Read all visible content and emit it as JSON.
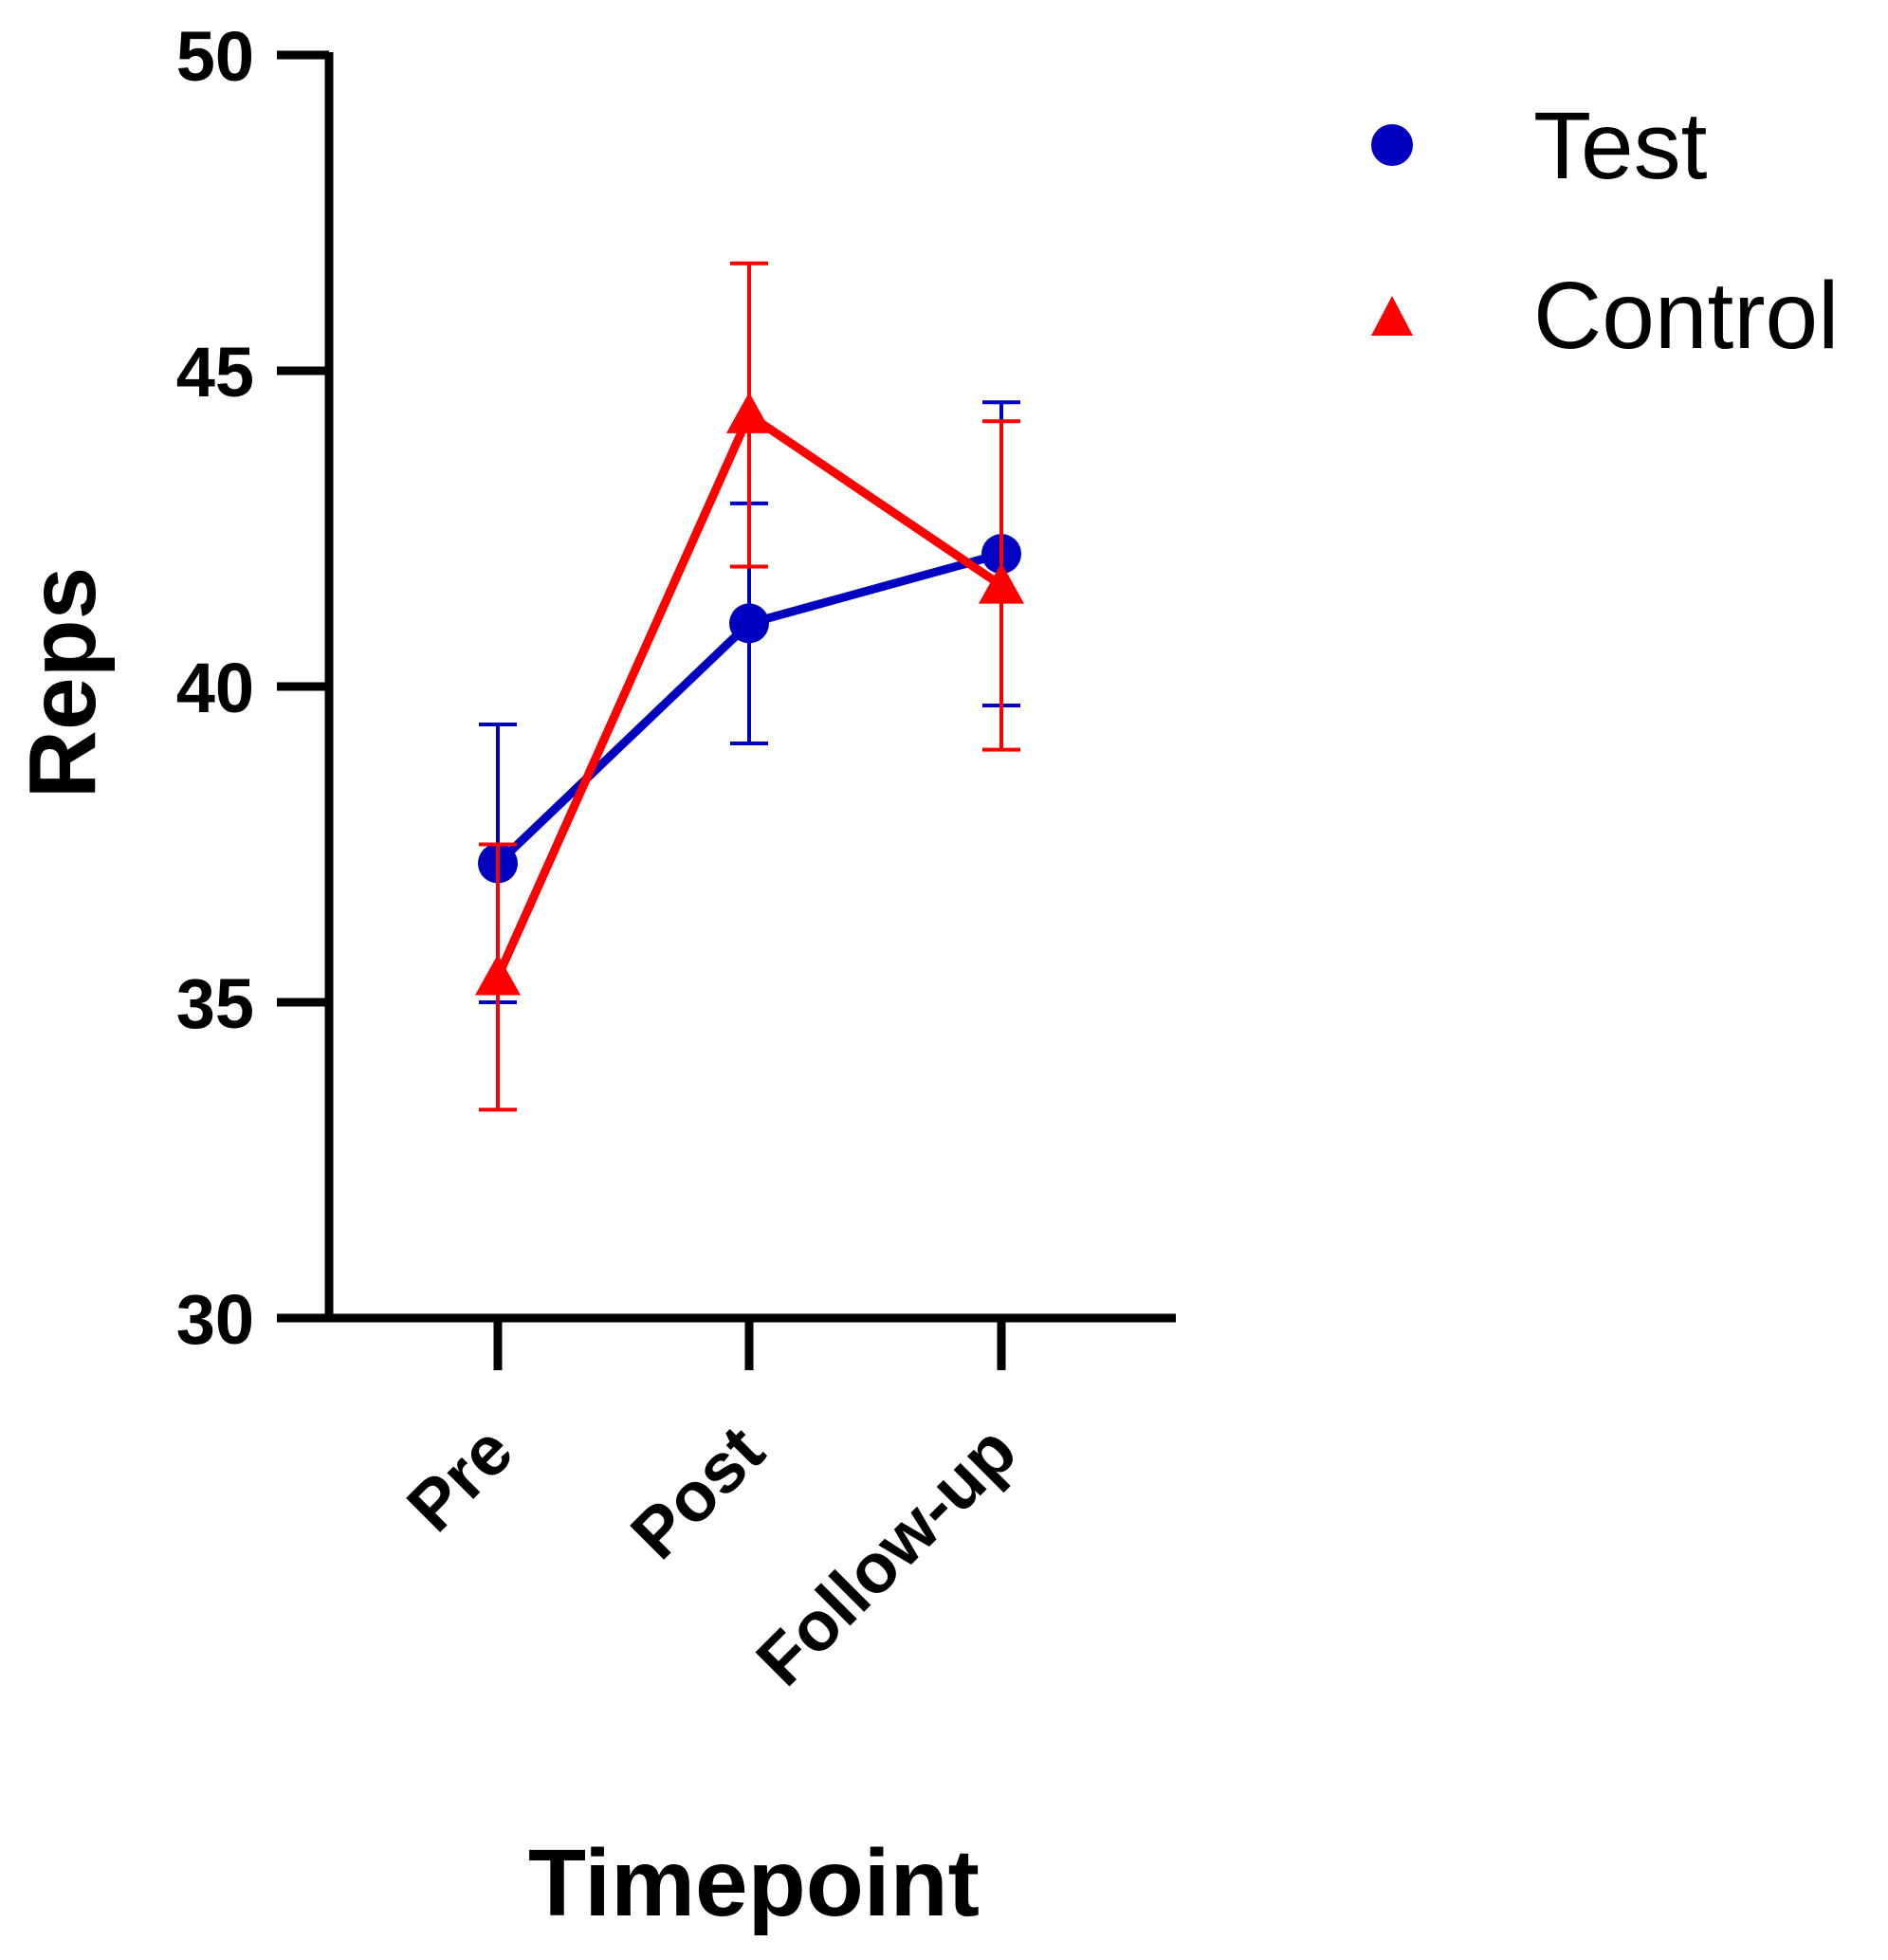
{
  "chart_data": {
    "type": "line",
    "title": "",
    "xlabel": "Timepoint",
    "ylabel": "Reps",
    "categories": [
      "Pre",
      "Post",
      "Follow-up"
    ],
    "ylim": [
      30,
      50
    ],
    "yticks": [
      "30",
      "35",
      "40",
      "45",
      "50"
    ],
    "grid": false,
    "legend_position": "top-right",
    "series": [
      {
        "name": "Test",
        "marker": "circle",
        "color": "#0000c0",
        "values": [
          37.2,
          41.0,
          42.1
        ],
        "error": [
          2.2,
          1.9,
          2.4
        ]
      },
      {
        "name": "Control",
        "marker": "triangle",
        "color": "#ff0000",
        "values": [
          35.4,
          44.3,
          41.6
        ],
        "error": [
          2.1,
          2.4,
          2.6
        ]
      }
    ]
  }
}
